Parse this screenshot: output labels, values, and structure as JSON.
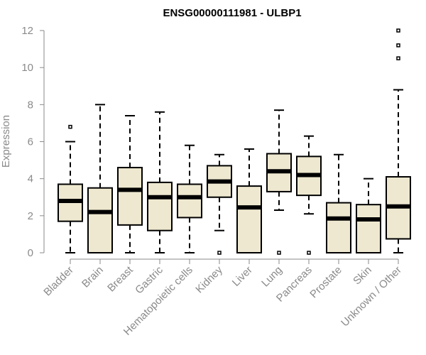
{
  "chart_data": {
    "type": "boxplot",
    "title": "ENSG00000111981 - ULBP1",
    "xlabel": "",
    "ylabel": "Expression",
    "ylim": [
      0,
      12
    ],
    "yticks": [
      0,
      2,
      4,
      6,
      8,
      10,
      12
    ],
    "ytick_labels": [
      "0",
      "2",
      "4",
      "6",
      "8",
      "10",
      "12"
    ],
    "grid": false,
    "colors": {
      "box_fill": "#EEE8D0",
      "box_stroke": "#000000",
      "axis": "#8a8a8a",
      "text": "#8a8a8a"
    },
    "categories": [
      "Bladder",
      "Brain",
      "Breast",
      "Gastric",
      "Hematopoietic cells",
      "Kidney",
      "Liver",
      "Lung",
      "Pancreas",
      "Prostate",
      "Skin",
      "Unknown / Other"
    ],
    "series": [
      {
        "name": "Bladder",
        "min": 0,
        "q1": 1.7,
        "median": 2.8,
        "q3": 3.7,
        "max": 6.0,
        "outliers": [
          6.8
        ]
      },
      {
        "name": "Brain",
        "min": 0,
        "q1": 0,
        "median": 2.2,
        "q3": 3.5,
        "max": 8.0,
        "outliers": []
      },
      {
        "name": "Breast",
        "min": 0,
        "q1": 1.5,
        "median": 3.4,
        "q3": 4.6,
        "max": 7.4,
        "outliers": []
      },
      {
        "name": "Gastric",
        "min": 0,
        "q1": 1.2,
        "median": 3.0,
        "q3": 3.8,
        "max": 7.6,
        "outliers": []
      },
      {
        "name": "Hematopoietic cells",
        "min": 0,
        "q1": 1.9,
        "median": 3.0,
        "q3": 3.7,
        "max": 5.8,
        "outliers": []
      },
      {
        "name": "Kidney",
        "min": 1.2,
        "q1": 3.0,
        "median": 3.85,
        "q3": 4.7,
        "max": 5.3,
        "outliers": [
          0
        ]
      },
      {
        "name": "Liver",
        "min": 0,
        "q1": 0,
        "median": 2.45,
        "q3": 3.6,
        "max": 5.6,
        "outliers": []
      },
      {
        "name": "Lung",
        "min": 2.3,
        "q1": 3.3,
        "median": 4.4,
        "q3": 5.35,
        "max": 7.7,
        "outliers": [
          0
        ]
      },
      {
        "name": "Pancreas",
        "min": 2.1,
        "q1": 3.1,
        "median": 4.2,
        "q3": 5.2,
        "max": 6.3,
        "outliers": [
          0
        ]
      },
      {
        "name": "Prostate",
        "min": 0,
        "q1": 0,
        "median": 1.85,
        "q3": 2.7,
        "max": 5.3,
        "outliers": []
      },
      {
        "name": "Skin",
        "min": 0,
        "q1": 0,
        "median": 1.8,
        "q3": 2.6,
        "max": 4.0,
        "outliers": []
      },
      {
        "name": "Unknown / Other",
        "min": 0,
        "q1": 0.75,
        "median": 2.5,
        "q3": 4.1,
        "max": 8.8,
        "outliers": [
          10.5,
          11.2,
          12.0
        ]
      }
    ]
  }
}
